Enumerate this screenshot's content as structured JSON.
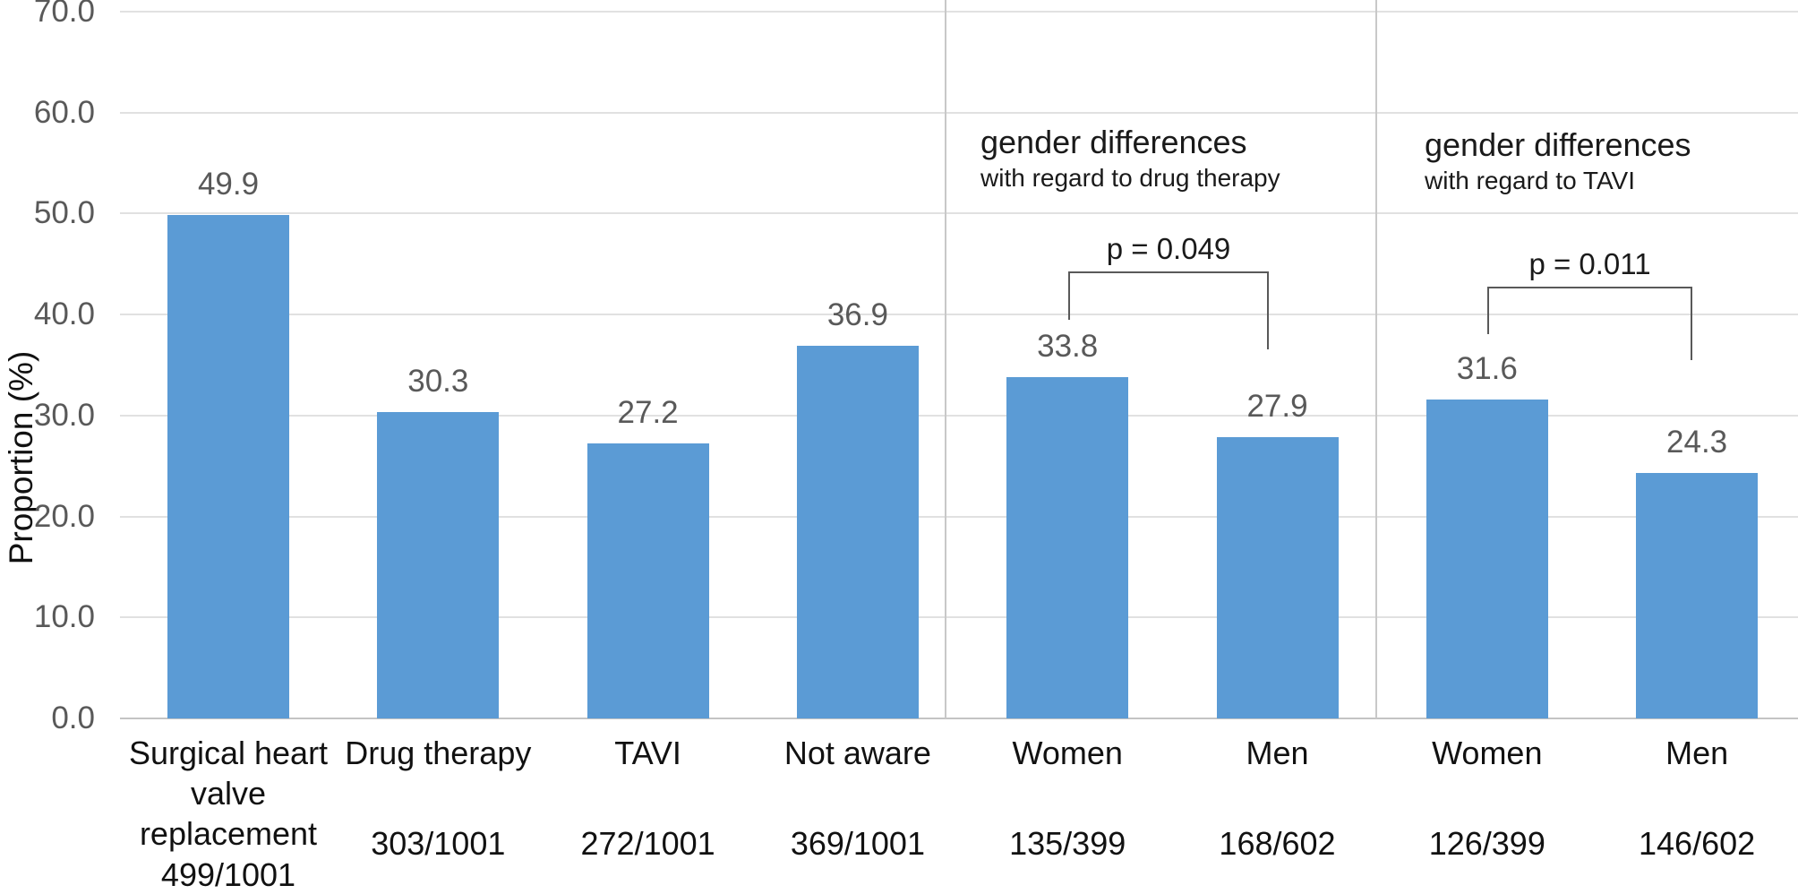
{
  "chart_data": {
    "type": "bar",
    "title": "",
    "xlabel": "",
    "ylabel": "Proportion (%)",
    "ylim": [
      0,
      70
    ],
    "grid": true,
    "legend": "none",
    "y_ticks": [
      "0.0",
      "10.0",
      "20.0",
      "30.0",
      "40.0",
      "50.0",
      "60.0",
      "70.0"
    ],
    "categories": [
      {
        "label": "Surgical heart\nvalve\nreplacement",
        "fraction": "499/1001",
        "value": 49.9,
        "value_label": "49.9"
      },
      {
        "label": "Drug therapy",
        "fraction": "303/1001",
        "value": 30.3,
        "value_label": "30.3"
      },
      {
        "label": "TAVI",
        "fraction": "272/1001",
        "value": 27.2,
        "value_label": "27.2"
      },
      {
        "label": "Not aware",
        "fraction": "369/1001",
        "value": 36.9,
        "value_label": "36.9"
      },
      {
        "label": "Women",
        "fraction": "135/399",
        "value": 33.8,
        "value_label": "33.8"
      },
      {
        "label": "Men",
        "fraction": "168/602",
        "value": 27.9,
        "value_label": "27.9"
      },
      {
        "label": "Women",
        "fraction": "126/399",
        "value": 31.6,
        "value_label": "31.6"
      },
      {
        "label": "Men",
        "fraction": "146/602",
        "value": 24.3,
        "value_label": "24.3"
      }
    ],
    "annotations": [
      {
        "title": "gender differences",
        "subtitle": "with regard to drug therapy"
      },
      {
        "title": "gender differences",
        "subtitle": "with regard to TAVI"
      }
    ],
    "comparisons": [
      {
        "p_label": "p = 0.049",
        "from_index": 4,
        "to_index": 5
      },
      {
        "p_label": "p = 0.011",
        "from_index": 6,
        "to_index": 7
      }
    ],
    "colors": {
      "bar": "#5b9bd5",
      "gridline": "#e1e1e1",
      "axis_line": "#c4c4c4",
      "separator": "#c8c8c8",
      "tick_text": "#595959",
      "label_text": "#111111",
      "bracket": "#595959"
    }
  }
}
